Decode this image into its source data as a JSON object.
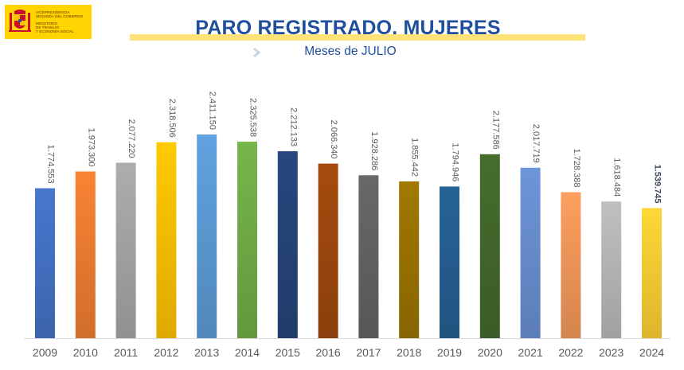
{
  "logo": {
    "lines_top": [
      "Vicepresidencia",
      "Segunda del Gobierno"
    ],
    "lines_bottom": [
      "Ministerio",
      "de Trabajo",
      "y Economía Social"
    ]
  },
  "chart_data": {
    "type": "bar",
    "title": "PARO REGISTRADO. MUJERES",
    "subtitle": "Meses de JULIO",
    "categories": [
      "2009",
      "2010",
      "2011",
      "2012",
      "2013",
      "2014",
      "2015",
      "2016",
      "2017",
      "2018",
      "2019",
      "2020",
      "2021",
      "2022",
      "2023",
      "2024"
    ],
    "values": [
      1774553,
      1973300,
      2077220,
      2318506,
      2411150,
      2325538,
      2212133,
      2066340,
      1928286,
      1855442,
      1794946,
      2177586,
      2017719,
      1728388,
      1618484,
      1539745
    ],
    "labels": [
      "1.774.553",
      "1.973.300",
      "2.077.220",
      "2.318.506",
      "2.411.150",
      "2.325.538",
      "2.212.133",
      "2.066.340",
      "1.928.286",
      "1.855.442",
      "1.794.946",
      "2.177.586",
      "2.017.719",
      "1.728.388",
      "1.618.484",
      "1.539.745"
    ],
    "bold_label_index": 15,
    "colors": [
      "#4472c4",
      "#ed7d31",
      "#a5a5a5",
      "#ffc000",
      "#5b9bd5",
      "#70ad47",
      "#264478",
      "#9e480e",
      "#636363",
      "#997300",
      "#255e91",
      "#43682b",
      "#698ed0",
      "#f1975a",
      "#b7b7b7",
      "#ffcd33"
    ],
    "ylim": [
      0,
      2600000
    ],
    "xlabel": "",
    "ylabel": "",
    "grid": false,
    "legend": "none"
  }
}
